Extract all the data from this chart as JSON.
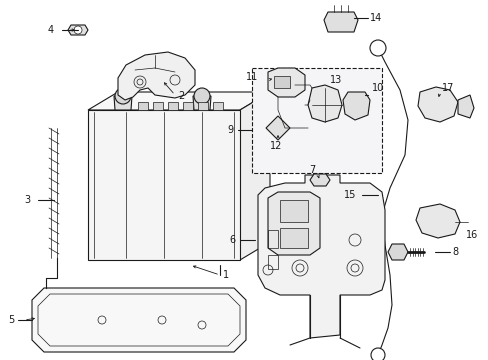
{
  "bg_color": "#ffffff",
  "line_color": "#1a1a1a",
  "fig_width": 4.89,
  "fig_height": 3.6,
  "dpi": 100,
  "lw_main": 0.8,
  "lw_thin": 0.5,
  "lw_thick": 1.0,
  "font_size": 7.0
}
